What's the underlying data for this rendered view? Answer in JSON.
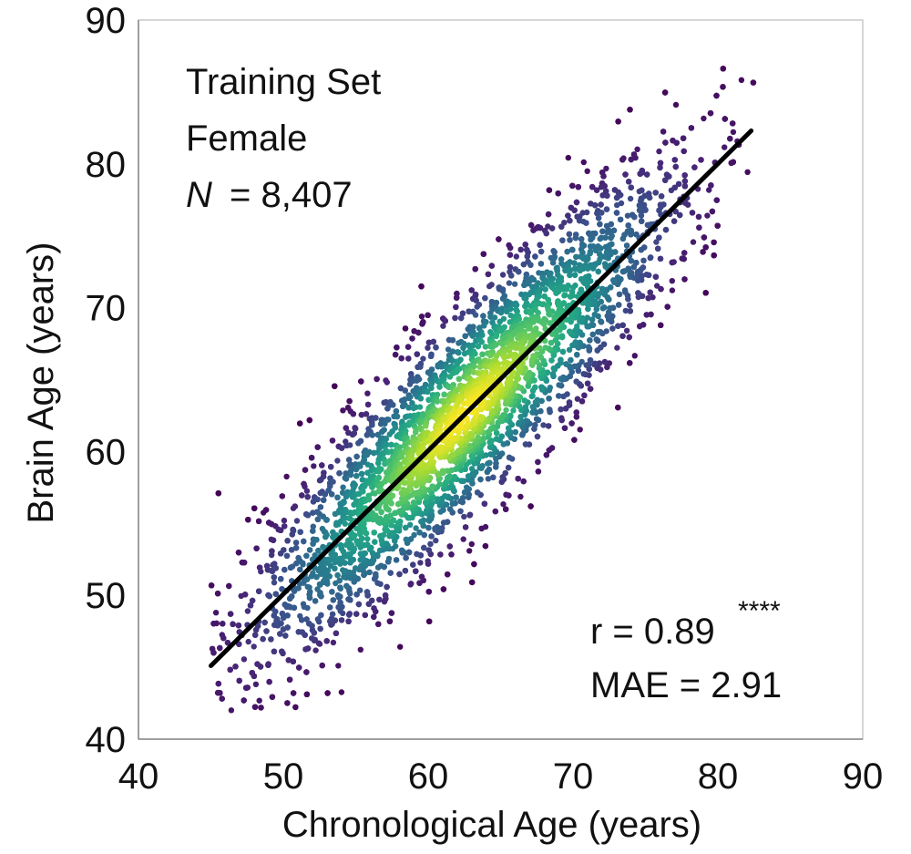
{
  "chart_data": {
    "type": "scatter",
    "xlabel": "Chronological Age (years)",
    "ylabel": "Brain Age (years)",
    "xlim": [
      40,
      90
    ],
    "ylim": [
      40,
      90
    ],
    "x_ticks": [
      40,
      50,
      60,
      70,
      80,
      90
    ],
    "y_ticks": [
      40,
      50,
      60,
      70,
      80,
      90
    ],
    "x_tick_labels": [
      "40",
      "50",
      "60",
      "70",
      "80",
      "90"
    ],
    "y_tick_labels": [
      "40",
      "50",
      "60",
      "70",
      "80",
      "90"
    ],
    "grid": false,
    "colormap": "viridis (point density)",
    "point_color_low": "#440154",
    "point_color_high": "#fde725",
    "fit_line": {
      "x": [
        45,
        82.3
      ],
      "y": [
        45.1,
        82.3
      ],
      "color": "#000000"
    },
    "annotations": {
      "dataset_title": "Training Set",
      "dataset_subgroup": "Female",
      "n_label": "N",
      "n_value": "= 8,407",
      "r_text": "r = 0.89",
      "r_significance": "****",
      "mae_text": "MAE = 2.91"
    },
    "points_summary": {
      "n": 8407,
      "x_range": [
        45,
        82.5
      ],
      "y_range": [
        42,
        88.5
      ],
      "pearson_r": 0.89,
      "mae": 2.91
    }
  }
}
